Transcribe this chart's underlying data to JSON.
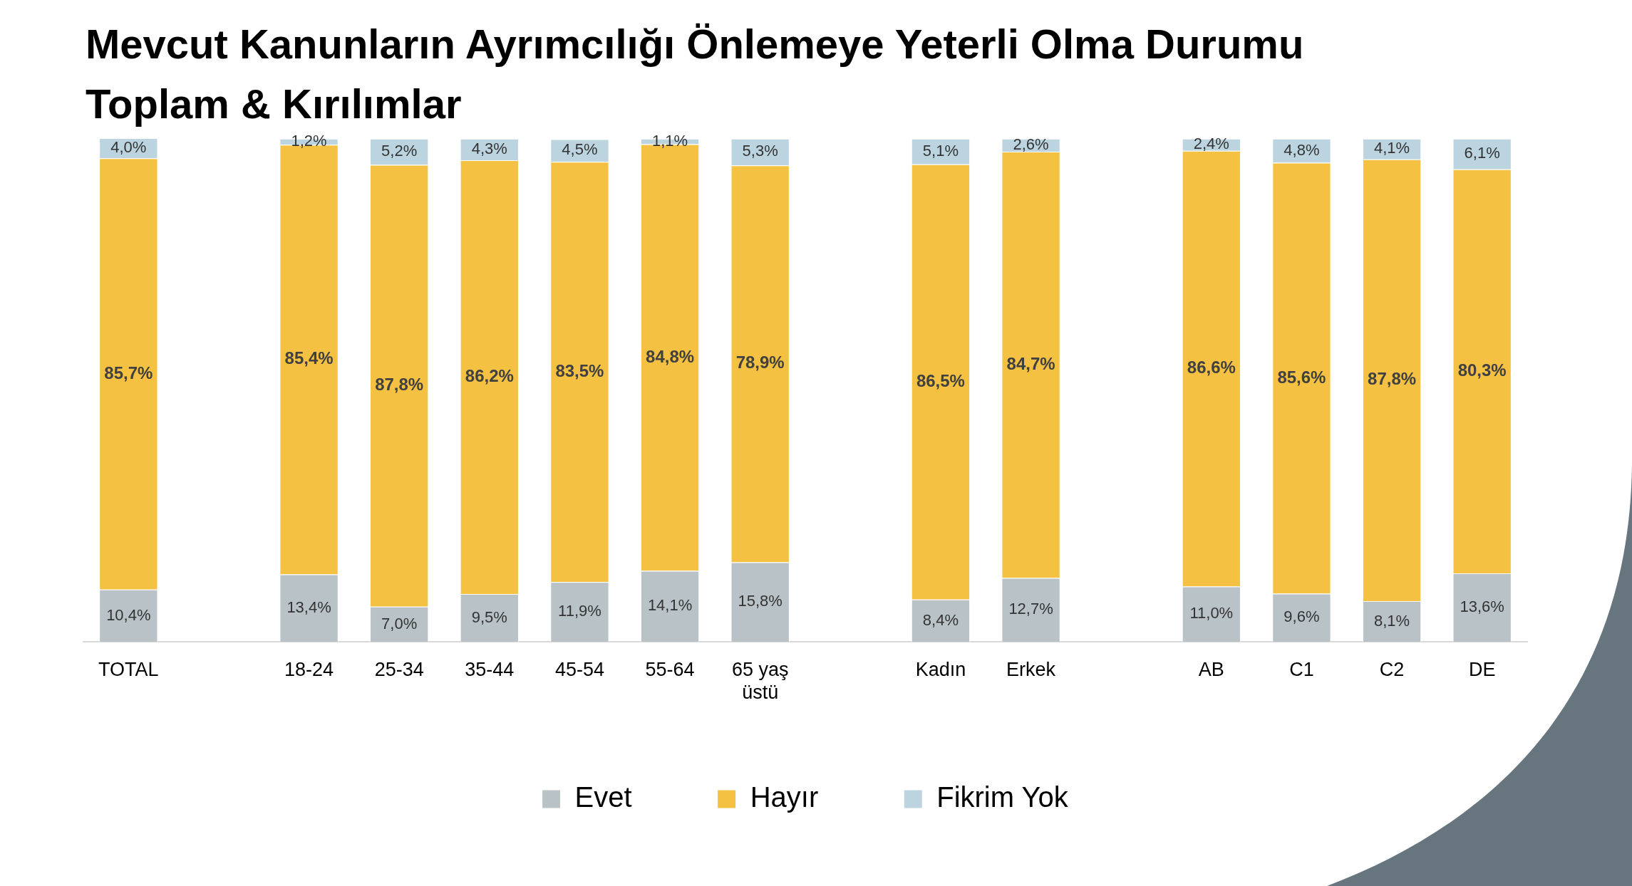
{
  "chart_data": {
    "type": "bar",
    "title": "Mevcut Kanunların Ayrımcılığı Önlemeye Yeterli Olma Durumu",
    "subtitle": "Toplam & Kırılımlar",
    "categories": [
      "TOTAL",
      null,
      "18-24",
      "25-34",
      "35-44",
      "45-54",
      "55-64",
      "65 yaş üstü",
      null,
      "Kadın",
      "Erkek",
      null,
      "AB",
      "C1",
      "C2",
      "DE"
    ],
    "series": [
      {
        "name": "Evet",
        "color": "#b9c2c7",
        "values": [
          10.4,
          null,
          13.4,
          7.0,
          9.5,
          11.9,
          14.1,
          15.8,
          null,
          8.4,
          12.7,
          null,
          11.0,
          9.6,
          8.1,
          13.6
        ],
        "value_labels": [
          "10,4%",
          null,
          "13,4%",
          "7,0%",
          "9,5%",
          "11,9%",
          "14,1%",
          "15,8%",
          null,
          "8,4%",
          "12,7%",
          null,
          "11,0%",
          "9,6%",
          "8,1%",
          "13,6%"
        ]
      },
      {
        "name": "Hayır",
        "color": "#f4c142",
        "values": [
          85.7,
          null,
          85.4,
          87.8,
          86.2,
          83.5,
          84.8,
          78.9,
          null,
          86.5,
          84.7,
          null,
          86.6,
          85.6,
          87.8,
          80.3
        ],
        "value_labels": [
          "85,7%",
          null,
          "85,4%",
          "87,8%",
          "86,2%",
          "83,5%",
          "84,8%",
          "78,9%",
          null,
          "86,5%",
          "84,7%",
          null,
          "86,6%",
          "85,6%",
          "87,8%",
          "80,3%"
        ]
      },
      {
        "name": "Fikrim Yok",
        "color": "#bbd4df",
        "values": [
          4.0,
          null,
          1.2,
          5.2,
          4.3,
          4.5,
          1.1,
          5.3,
          null,
          5.1,
          2.6,
          null,
          2.4,
          4.8,
          4.1,
          6.1
        ],
        "value_labels": [
          "4,0%",
          null,
          "1,2%",
          "5,2%",
          "4,3%",
          "4,5%",
          "1,1%",
          "5,3%",
          null,
          "5,1%",
          "2,6%",
          null,
          "2,4%",
          "4,8%",
          "4,1%",
          "6,1%"
        ]
      }
    ],
    "stacked": true,
    "legend": "bottom",
    "tick_labels": "x"
  }
}
